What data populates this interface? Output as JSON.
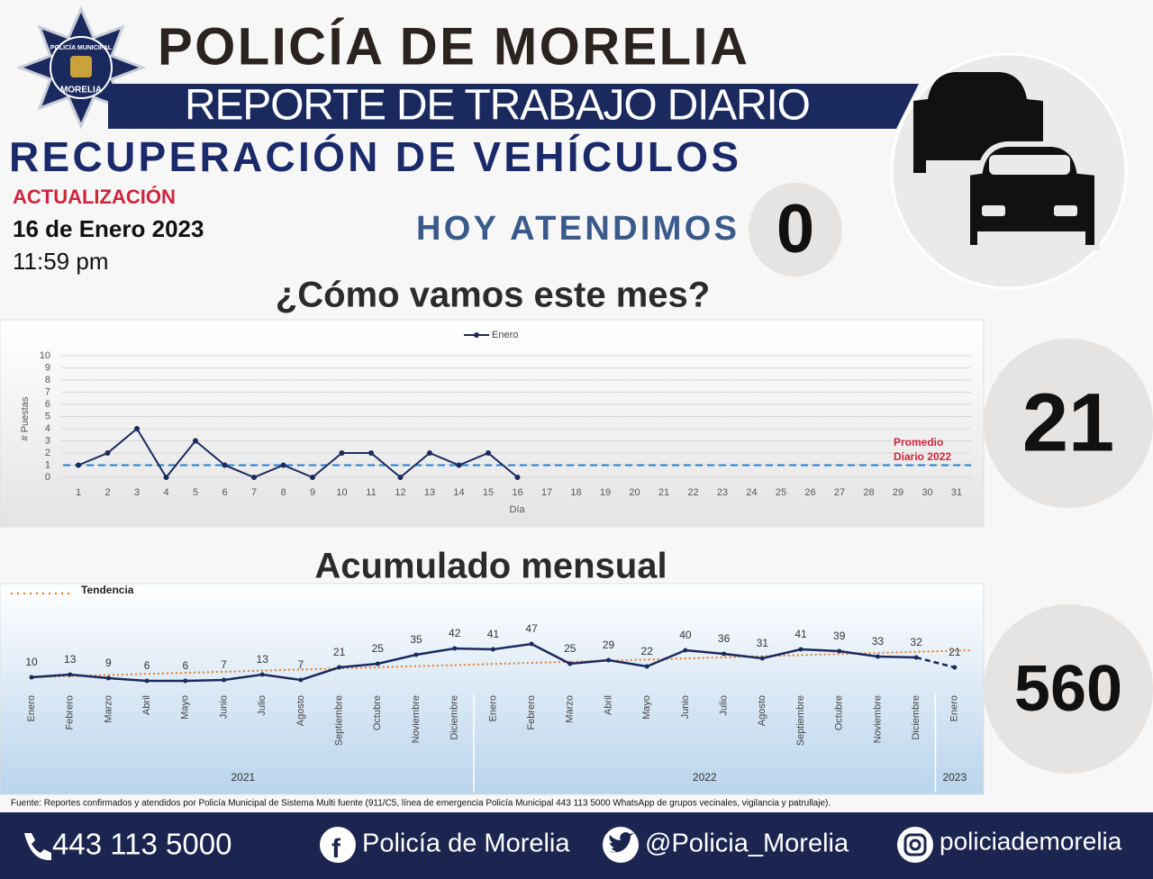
{
  "header": {
    "logo_top": "POLICÍA MUNICIPAL",
    "logo_bottom": "MORELIA",
    "title": "POLICÍA DE MORELIA",
    "subtitle": "REPORTE DE TRABAJO DIARIO",
    "section": "RECUPERACIÓN DE VEHÍCULOS",
    "update_label": "ACTUALIZACIÓN",
    "date": "16 de Enero 2023",
    "time": "11:59 pm",
    "today_label": "HOY ATENDIMOS",
    "today_value": 0
  },
  "month_heading": "¿Cómo vamos este mes?",
  "month_total": 21,
  "cumulative_heading": "Acumulado mensual",
  "cumulative_total": 560,
  "chart_data": [
    {
      "type": "line",
      "y_label": "# Puestas",
      "x_label": "Día",
      "categories": [
        1,
        2,
        3,
        4,
        5,
        6,
        7,
        8,
        9,
        10,
        11,
        12,
        13,
        14,
        15,
        16,
        17,
        18,
        19,
        20,
        21,
        22,
        23,
        24,
        25,
        26,
        27,
        28,
        29,
        30,
        31
      ],
      "series": [
        {
          "name": "Enero",
          "color": "#1b2a5e",
          "values": [
            1,
            2,
            4,
            0,
            3,
            1,
            0,
            1,
            0,
            2,
            2,
            0,
            2,
            1,
            2,
            0,
            null,
            null,
            null,
            null,
            null,
            null,
            null,
            null,
            null,
            null,
            null,
            null,
            null,
            null,
            null
          ]
        }
      ],
      "ylim": [
        0,
        10
      ],
      "yticks": [
        0,
        1,
        2,
        3,
        4,
        5,
        6,
        7,
        8,
        9,
        10
      ],
      "grid": true,
      "reference_line": {
        "label": [
          "Promedio",
          "Diario 2022"
        ],
        "value": 1,
        "color": "#2e7bc4",
        "label_color": "#d0243d"
      }
    },
    {
      "type": "line",
      "categories": [
        "Enero",
        "Febrero",
        "Marzo",
        "Abril",
        "Mayo",
        "Junio",
        "Julio",
        "Agosto",
        "Septiembre",
        "Octubre",
        "Noviembre",
        "Diciembre",
        "Enero",
        "Febrero",
        "Marzo",
        "Abril",
        "Mayo",
        "Junio",
        "Julio",
        "Agosto",
        "Septiembre",
        "Octubre",
        "Noviembre",
        "Diciembre",
        "Enero"
      ],
      "groups": [
        {
          "label": "2021",
          "count": 12
        },
        {
          "label": "2022",
          "count": 12
        },
        {
          "label": "2023",
          "count": 1
        }
      ],
      "series": [
        {
          "name": "Acumulado",
          "color": "#1b2a5e",
          "values": [
            10,
            13,
            9,
            6,
            6,
            7,
            13,
            7,
            21,
            25,
            35,
            42,
            41,
            47,
            25,
            29,
            22,
            40,
            36,
            31,
            41,
            39,
            33,
            32,
            21
          ]
        }
      ],
      "trend": {
        "name": "Tendencia",
        "color": "#e07b2a",
        "values": [
          10,
          40
        ]
      }
    }
  ],
  "source": "Fuente: Reportes confirmados y atendidos por Policía Municipal de Sistema Multi fuente (911/C5, línea de emergencia Policía Municipal 443 113 5000 WhatsApp de grupos vecinales, vigilancia y patrullaje).",
  "footer": {
    "phone": "443 113 5000",
    "facebook": "Policía de Morelia",
    "twitter": "@Policia_Morelia",
    "instagram": "policiademorelia"
  }
}
